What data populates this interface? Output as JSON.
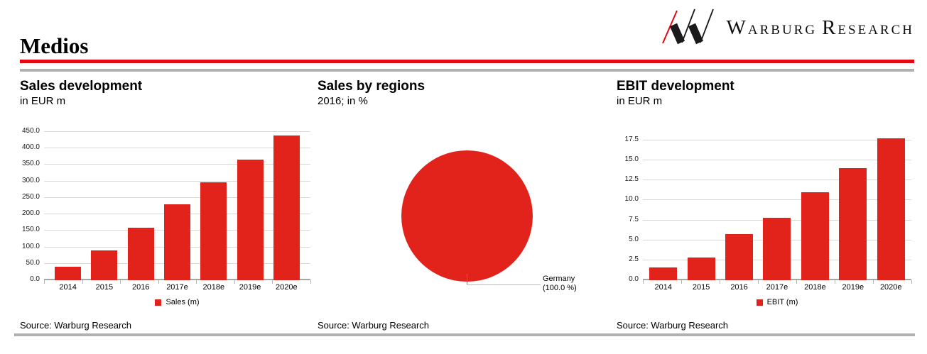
{
  "header": {
    "title": "Medios",
    "brand": "Warburg Research"
  },
  "colors": {
    "accent_red": "#e30613",
    "chart_red": "#e2231c",
    "rule_gray": "#b1b1b1",
    "gridline_gray": "#d9d9d9",
    "axis_gray": "#a6a6a6"
  },
  "chart_data": [
    {
      "type": "bar",
      "title": "Sales development",
      "subtitle": "in EUR m",
      "categories": [
        "2014",
        "2015",
        "2016",
        "2017e",
        "2018e",
        "2019e",
        "2020e"
      ],
      "values": [
        40,
        90,
        160,
        230,
        298,
        365,
        440
      ],
      "legend": [
        "Sales (m)"
      ],
      "ylim": [
        0,
        450
      ],
      "ytick_step": 50,
      "ytick_decimals": 1,
      "grid": true,
      "legend_position": "bottom",
      "source": "Source: Warburg Research"
    },
    {
      "type": "pie",
      "title": "Sales by regions",
      "subtitle": "2016; in %",
      "slices": [
        {
          "label": "Germany",
          "value": 100.0,
          "callout_line1": "Germany",
          "callout_line2": "(100.0 %)"
        }
      ],
      "legend_position": "none",
      "source": "Source: Warburg Research"
    },
    {
      "type": "bar",
      "title": "EBIT development",
      "subtitle": "in EUR m",
      "categories": [
        "2014",
        "2015",
        "2016",
        "2017e",
        "2018e",
        "2019e",
        "2020e"
      ],
      "values": [
        1.6,
        2.8,
        5.8,
        7.8,
        11.0,
        14.0,
        17.8
      ],
      "legend": [
        "EBIT (m)"
      ],
      "ylim": [
        0,
        17.5
      ],
      "ytick_step": 2.5,
      "ytick_decimals": 1,
      "grid": true,
      "legend_position": "bottom",
      "source": "Source: Warburg Research"
    }
  ]
}
